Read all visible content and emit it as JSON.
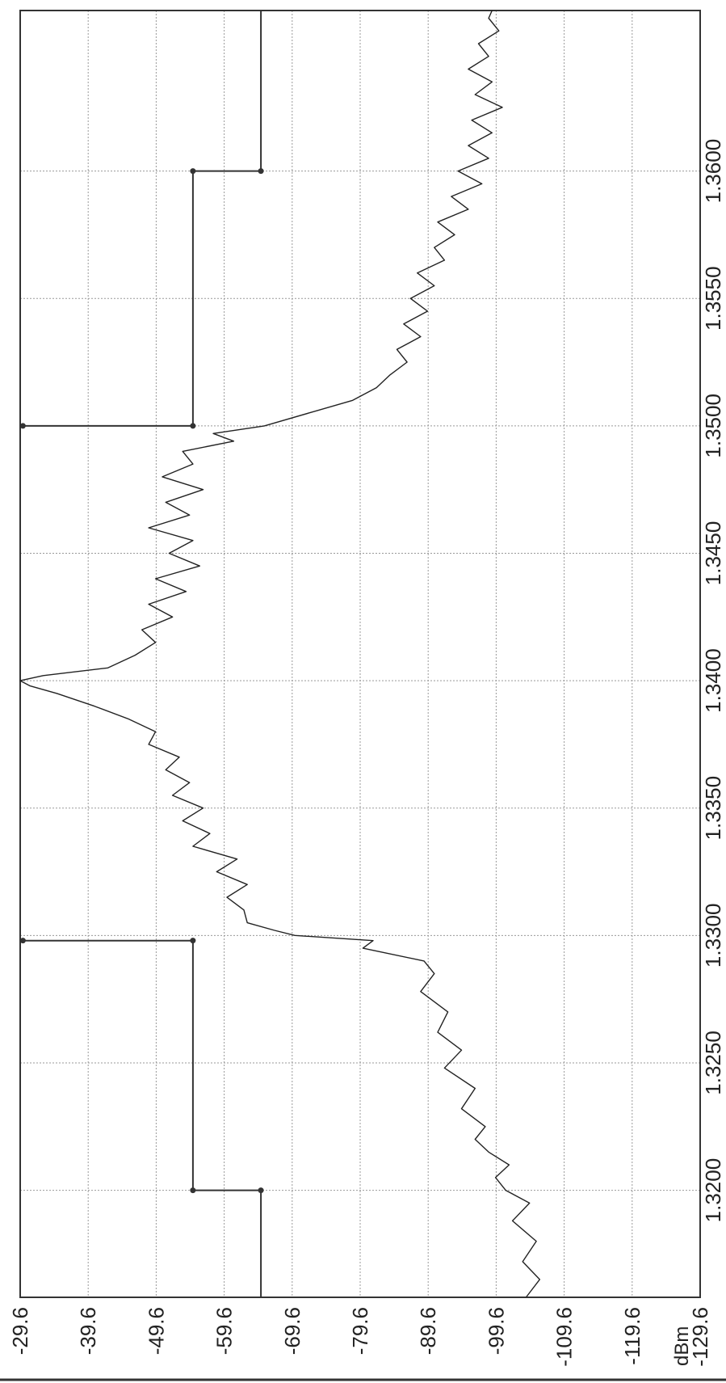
{
  "chart_data": {
    "type": "line",
    "orientation": "rotated-90",
    "x_axis": {
      "label": "",
      "range": [
        1.3158,
        1.3663
      ],
      "ticks": [
        "1.3200",
        "1.3250",
        "1.3300",
        "1.3350",
        "1.3400",
        "1.3450",
        "1.3500",
        "1.3550",
        "1.3600"
      ]
    },
    "y_axis": {
      "label": "dBm",
      "range": [
        -129.6,
        -29.6
      ],
      "ticks": [
        "-29.6",
        "-39.6",
        "-49.6",
        "-59.6",
        "-69.6",
        "-79.6",
        "-89.6",
        "-99.6",
        "-109.6",
        "-119.6",
        "-129.6"
      ]
    },
    "grid": true,
    "legend": "none",
    "series": [
      {
        "role": "spectrum-trace",
        "x": [
          1.3158,
          1.3165,
          1.3172,
          1.318,
          1.3188,
          1.3195,
          1.32,
          1.3205,
          1.321,
          1.3215,
          1.322,
          1.3225,
          1.3232,
          1.324,
          1.3248,
          1.3255,
          1.3262,
          1.327,
          1.3278,
          1.3285,
          1.329,
          1.3295,
          1.3298,
          1.33,
          1.3302,
          1.3305,
          1.331,
          1.3315,
          1.332,
          1.3325,
          1.333,
          1.3335,
          1.334,
          1.3345,
          1.335,
          1.3355,
          1.336,
          1.3365,
          1.337,
          1.3375,
          1.338,
          1.3385,
          1.339,
          1.3395,
          1.3398,
          1.34,
          1.3402,
          1.3405,
          1.341,
          1.3415,
          1.342,
          1.3425,
          1.343,
          1.3435,
          1.344,
          1.3445,
          1.345,
          1.3455,
          1.346,
          1.3465,
          1.347,
          1.3475,
          1.348,
          1.3485,
          1.349,
          1.3494,
          1.3497,
          1.35,
          1.3505,
          1.351,
          1.3515,
          1.352,
          1.3525,
          1.353,
          1.3535,
          1.354,
          1.3545,
          1.355,
          1.3555,
          1.356,
          1.3565,
          1.357,
          1.3575,
          1.358,
          1.3585,
          1.359,
          1.3595,
          1.36,
          1.3605,
          1.361,
          1.3615,
          1.362,
          1.3625,
          1.363,
          1.3635,
          1.364,
          1.3645,
          1.365,
          1.3655,
          1.366,
          1.3663
        ],
        "y": [
          -104.0,
          -106.0,
          -103.5,
          -105.5,
          -102.0,
          -104.5,
          -101.0,
          -99.5,
          -101.5,
          -98.5,
          -96.5,
          -98.0,
          -94.5,
          -96.5,
          -92.0,
          -94.5,
          -91.0,
          -92.5,
          -88.5,
          -90.5,
          -89.0,
          -80.0,
          -81.5,
          -70.0,
          -67.0,
          -63.0,
          -62.5,
          -60.0,
          -63.0,
          -58.5,
          -61.5,
          -55.0,
          -57.5,
          -53.5,
          -56.5,
          -52.0,
          -54.5,
          -51.0,
          -53.0,
          -48.5,
          -49.5,
          -45.5,
          -40.5,
          -35.0,
          -31.0,
          -29.6,
          -33.0,
          -42.5,
          -46.5,
          -49.5,
          -47.5,
          -52.0,
          -48.5,
          -54.0,
          -49.5,
          -56.0,
          -51.5,
          -55.0,
          -48.5,
          -54.5,
          -51.0,
          -56.5,
          -50.5,
          -55.0,
          -53.5,
          -61.0,
          -58.0,
          -65.5,
          -72.0,
          -78.5,
          -82.0,
          -84.0,
          -86.5,
          -85.0,
          -88.5,
          -86.0,
          -89.5,
          -87.0,
          -90.5,
          -88.0,
          -92.0,
          -90.5,
          -93.5,
          -91.0,
          -95.5,
          -93.0,
          -97.5,
          -94.0,
          -98.5,
          -95.5,
          -99.0,
          -96.0,
          -100.5,
          -96.5,
          -99.0,
          -95.5,
          -98.5,
          -97.0,
          -100.0,
          -98.5,
          -99.0
        ]
      },
      {
        "role": "limit-mask-left",
        "x": [
          1.3158,
          1.32,
          1.32,
          1.3298,
          1.3298
        ],
        "y": [
          -65.0,
          -65.0,
          -55.0,
          -55.0,
          -30.0
        ]
      },
      {
        "role": "limit-mask-right",
        "x": [
          1.3663,
          1.36,
          1.36,
          1.35,
          1.35
        ],
        "y": [
          -65.0,
          -65.0,
          -55.0,
          -55.0,
          -30.0
        ]
      }
    ]
  }
}
